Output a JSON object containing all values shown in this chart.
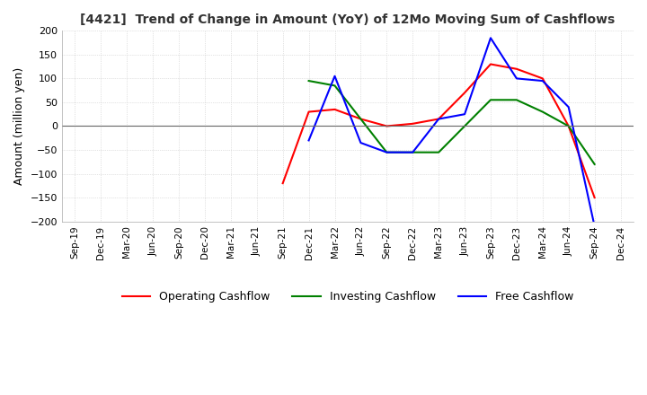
{
  "title": "[4421]  Trend of Change in Amount (YoY) of 12Mo Moving Sum of Cashflows",
  "ylabel": "Amount (million yen)",
  "ylim": [
    -200,
    200
  ],
  "yticks": [
    -200,
    -150,
    -100,
    -50,
    0,
    50,
    100,
    150,
    200
  ],
  "background_color": "#ffffff",
  "grid_color": "#c8c8c8",
  "x_labels": [
    "Sep-19",
    "Dec-19",
    "Mar-20",
    "Jun-20",
    "Sep-20",
    "Dec-20",
    "Mar-21",
    "Jun-21",
    "Sep-21",
    "Dec-21",
    "Mar-22",
    "Jun-22",
    "Sep-22",
    "Dec-22",
    "Mar-23",
    "Jun-23",
    "Sep-23",
    "Dec-23",
    "Mar-24",
    "Jun-24",
    "Sep-24",
    "Dec-24"
  ],
  "operating_cashflow": [
    null,
    null,
    null,
    null,
    null,
    null,
    null,
    null,
    -120,
    30,
    35,
    15,
    0,
    5,
    15,
    70,
    130,
    120,
    100,
    0,
    -150,
    null
  ],
  "investing_cashflow": [
    null,
    null,
    null,
    null,
    null,
    null,
    null,
    null,
    null,
    95,
    85,
    15,
    -55,
    -55,
    -55,
    0,
    55,
    55,
    30,
    0,
    -80,
    null
  ],
  "free_cashflow": [
    null,
    null,
    null,
    null,
    null,
    null,
    null,
    null,
    null,
    -30,
    105,
    -35,
    -55,
    -55,
    15,
    25,
    185,
    100,
    95,
    40,
    -210,
    null
  ],
  "op_color": "#ff0000",
  "inv_color": "#008000",
  "free_color": "#0000ff",
  "line_width": 1.5
}
